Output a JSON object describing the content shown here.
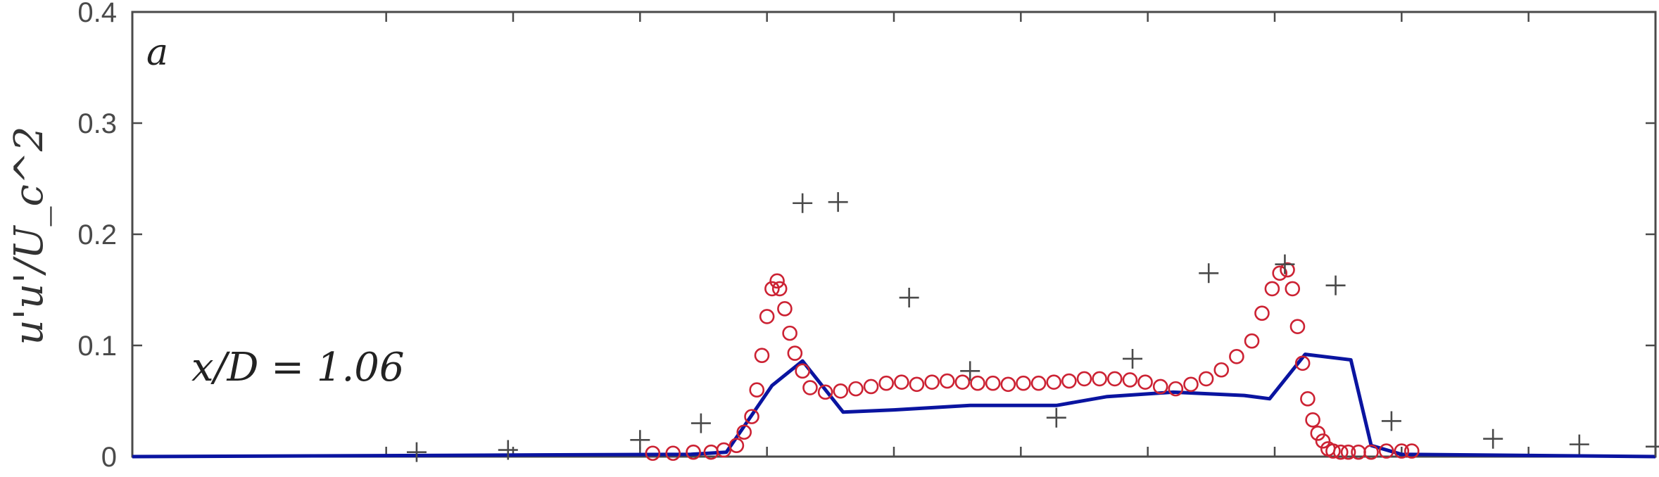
{
  "chart_data": {
    "type": "scatter",
    "title": "",
    "xlabel": "",
    "ylabel": "u'u'/U_c^2",
    "ylim": [
      0,
      0.4
    ],
    "xlim": [
      -1.5,
      1.5
    ],
    "yticks": [
      0,
      0.1,
      0.2,
      0.3,
      0.4
    ],
    "ytick_labels": [
      "0",
      "0.1",
      "0.2",
      "0.3",
      "0.4"
    ],
    "xticks": [
      -1.0,
      -0.75,
      -0.5,
      -0.25,
      0,
      0.25,
      0.5,
      0.75,
      1.0,
      1.25
    ],
    "grid": false,
    "panel_label": "a",
    "annotation": "x/D = 1.06",
    "colors": {
      "line": "#0a14a0",
      "circles": "#cc2233",
      "plus": "#4a4a4a",
      "axes": "#4a4a4a"
    },
    "series": [
      {
        "marker": "line",
        "x": [
          -1.5,
          -0.4,
          -0.33,
          -0.24,
          -0.18,
          -0.1,
          0.0,
          0.15,
          0.32,
          0.42,
          0.55,
          0.69,
          0.74,
          0.81,
          0.9,
          0.94,
          1.0,
          1.5
        ],
        "y": [
          0.0,
          0.002,
          0.004,
          0.064,
          0.086,
          0.04,
          0.042,
          0.046,
          0.046,
          0.054,
          0.058,
          0.055,
          0.052,
          0.092,
          0.087,
          0.01,
          0.002,
          0.0
        ]
      },
      {
        "marker": "circle",
        "x": [
          -0.475,
          -0.435,
          -0.395,
          -0.36,
          -0.335,
          -0.31,
          -0.295,
          -0.28,
          -0.27,
          -0.26,
          -0.25,
          -0.24,
          -0.23,
          -0.225,
          -0.215,
          -0.205,
          -0.195,
          -0.18,
          -0.165,
          -0.135,
          -0.105,
          -0.075,
          -0.045,
          -0.015,
          0.015,
          0.045,
          0.075,
          0.105,
          0.135,
          0.165,
          0.195,
          0.225,
          0.255,
          0.285,
          0.315,
          0.345,
          0.375,
          0.405,
          0.435,
          0.465,
          0.495,
          0.525,
          0.555,
          0.585,
          0.615,
          0.645,
          0.675,
          0.705,
          0.725,
          0.745,
          0.76,
          0.775,
          0.785,
          0.795,
          0.805,
          0.815,
          0.825,
          0.835,
          0.845,
          0.855,
          0.865,
          0.88,
          0.895,
          0.915,
          0.94,
          0.97,
          1.0,
          1.02
        ],
        "y": [
          0.003,
          0.003,
          0.004,
          0.004,
          0.006,
          0.01,
          0.022,
          0.036,
          0.06,
          0.091,
          0.126,
          0.151,
          0.158,
          0.151,
          0.133,
          0.111,
          0.093,
          0.077,
          0.062,
          0.058,
          0.059,
          0.061,
          0.063,
          0.066,
          0.067,
          0.065,
          0.067,
          0.068,
          0.067,
          0.066,
          0.066,
          0.065,
          0.066,
          0.066,
          0.067,
          0.068,
          0.07,
          0.07,
          0.07,
          0.069,
          0.067,
          0.063,
          0.061,
          0.065,
          0.07,
          0.078,
          0.09,
          0.104,
          0.129,
          0.151,
          0.165,
          0.168,
          0.151,
          0.117,
          0.084,
          0.052,
          0.033,
          0.021,
          0.014,
          0.007,
          0.005,
          0.004,
          0.004,
          0.004,
          0.004,
          0.005,
          0.005,
          0.005
        ]
      },
      {
        "marker": "plus",
        "x": [
          -0.94,
          -0.76,
          -0.5,
          -0.38,
          -0.18,
          -0.11,
          0.03,
          0.15,
          0.32,
          0.47,
          0.62,
          0.77,
          0.87,
          0.98,
          1.18,
          1.35,
          1.5
        ],
        "y": [
          0.004,
          0.006,
          0.015,
          0.03,
          0.228,
          0.229,
          0.143,
          0.077,
          0.035,
          0.088,
          0.165,
          0.173,
          0.154,
          0.032,
          0.016,
          0.011,
          0.009
        ]
      }
    ]
  }
}
